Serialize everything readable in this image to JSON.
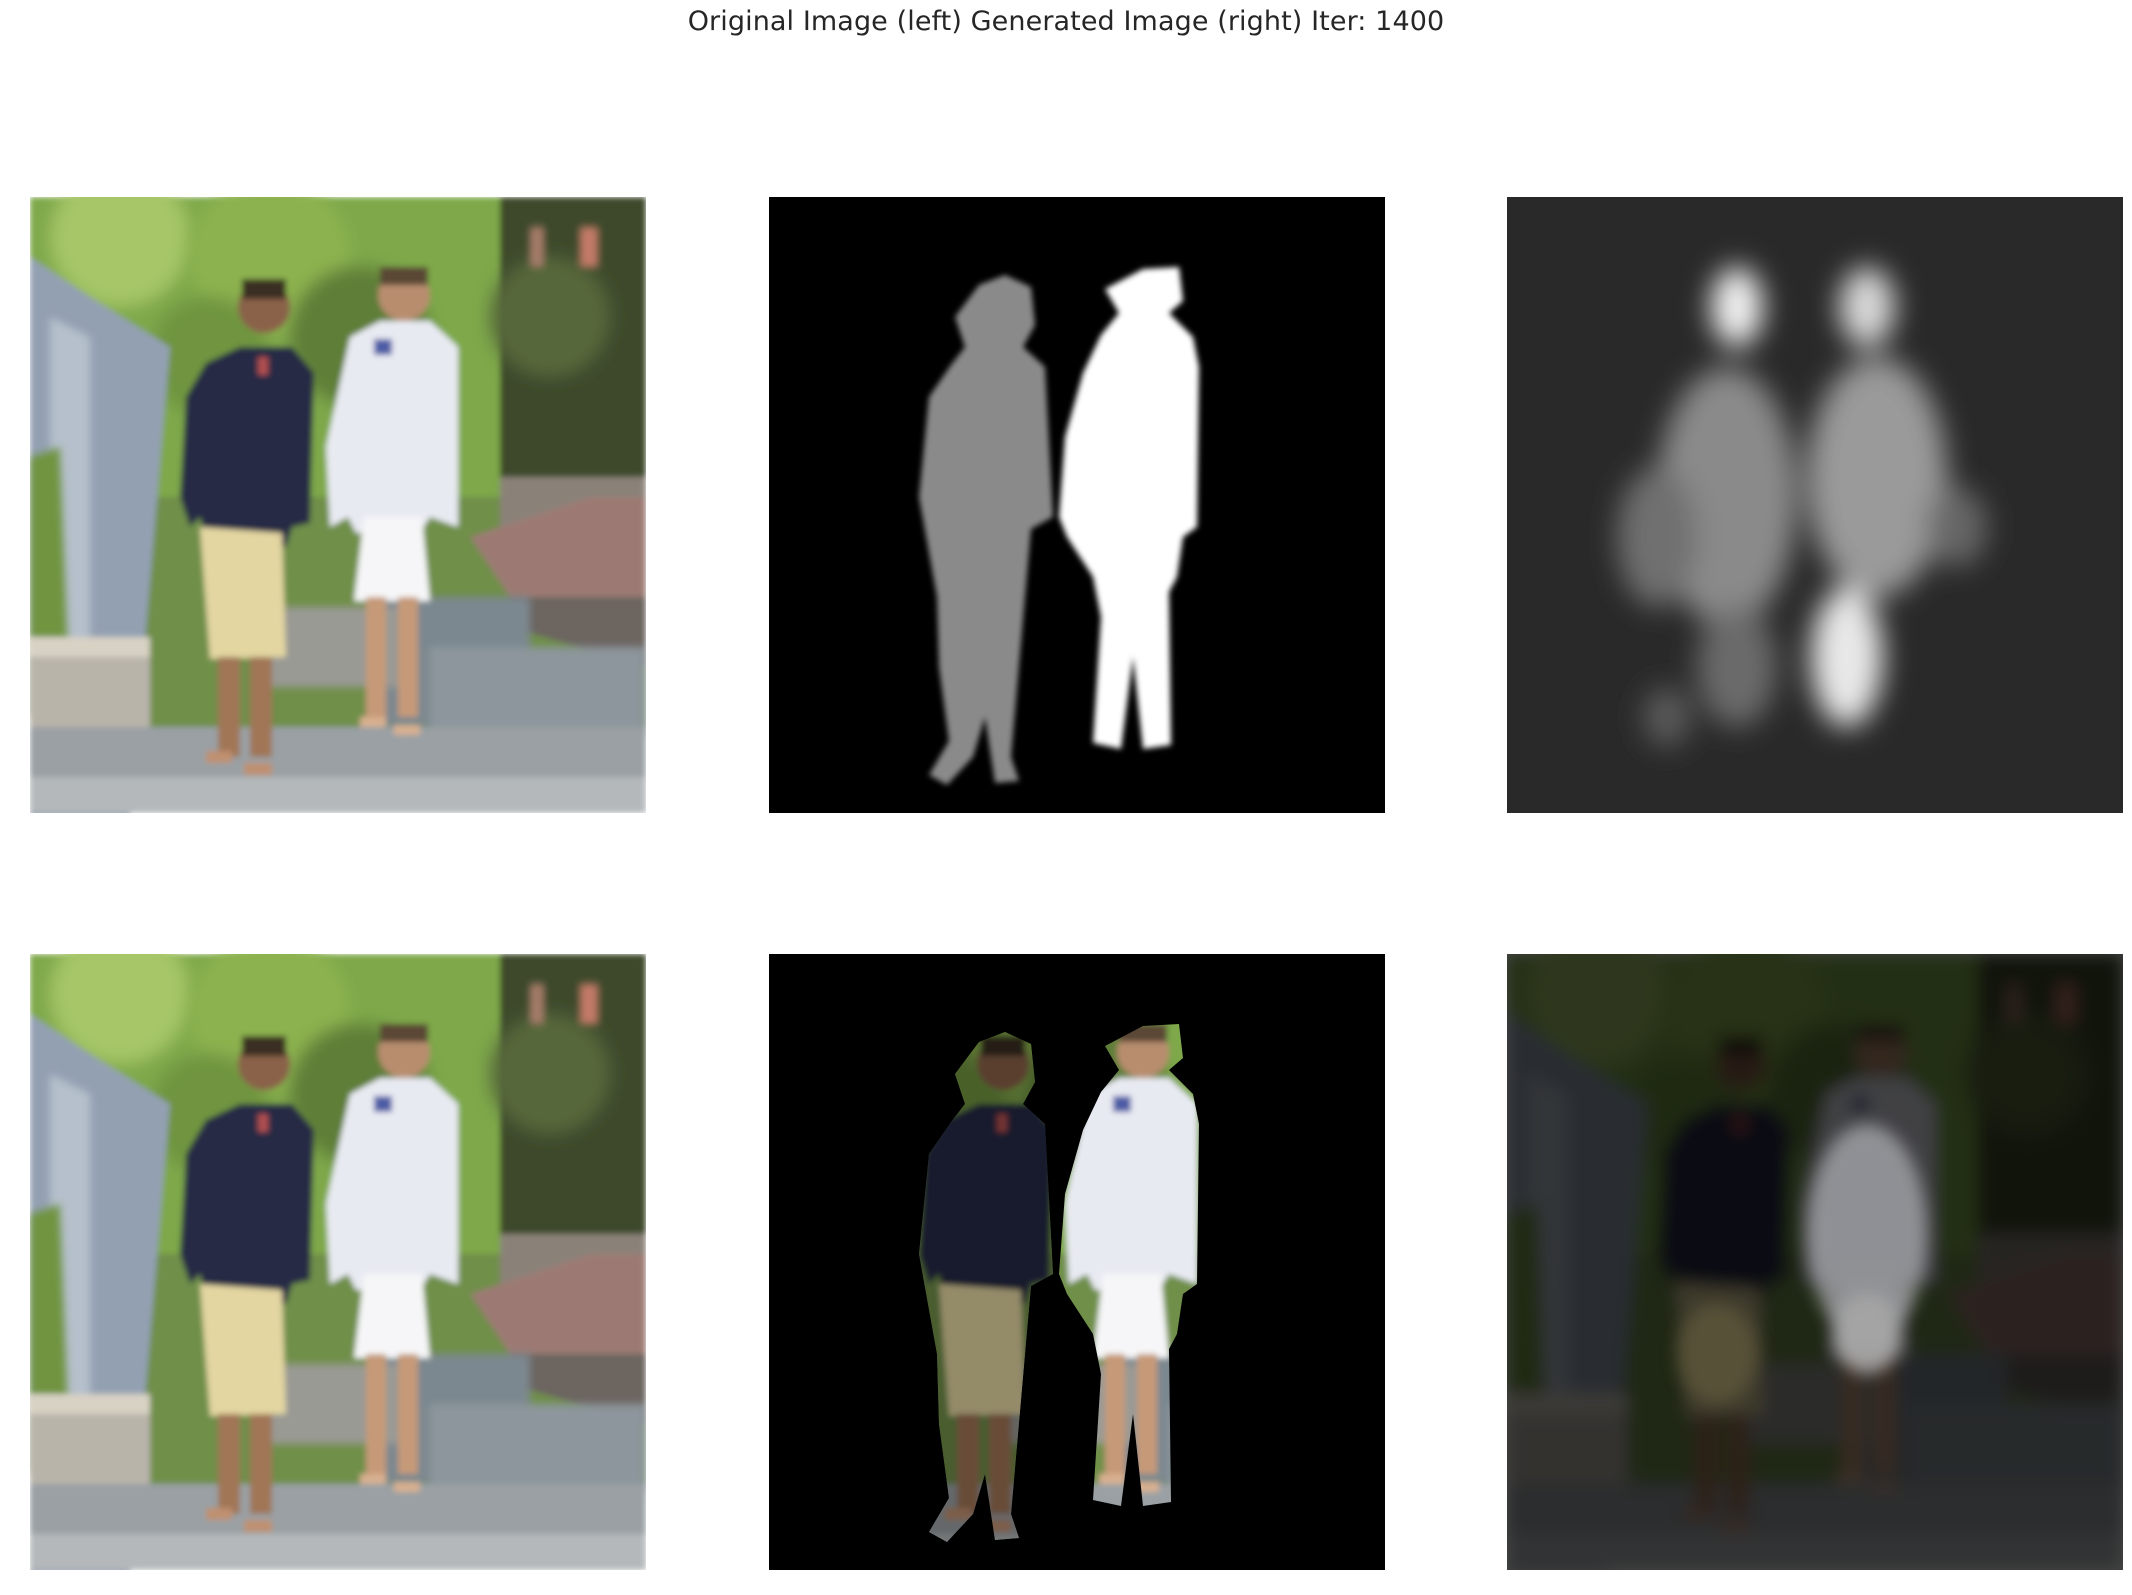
{
  "figure": {
    "title": "Original Image (left) Generated Image (right) Iter: 1400"
  },
  "grid": {
    "rows": 2,
    "columns": 3
  },
  "panels": [
    {
      "row": 1,
      "column": 1,
      "content": "original-photo"
    },
    {
      "row": 1,
      "column": 2,
      "content": "segmentation-mask"
    },
    {
      "row": 1,
      "column": 3,
      "content": "generated-mask"
    },
    {
      "row": 2,
      "column": 1,
      "content": "original-photo"
    },
    {
      "row": 2,
      "column": 2,
      "content": "masked-photo"
    },
    {
      "row": 2,
      "column": 3,
      "content": "generated-photo"
    }
  ],
  "colors": {
    "figure_background": "#ffffff",
    "title_text": "#262626",
    "mask_background": "#000000",
    "mask_person_left": "#8a8a8a",
    "mask_person_right": "#ffffff",
    "foliage": "#7ea84a",
    "navy_shirt": "#262a44",
    "white_shirt": "#e8eaf2",
    "khaki_shorts": "#e3d6a1",
    "pavement": "#9aa0a4"
  }
}
